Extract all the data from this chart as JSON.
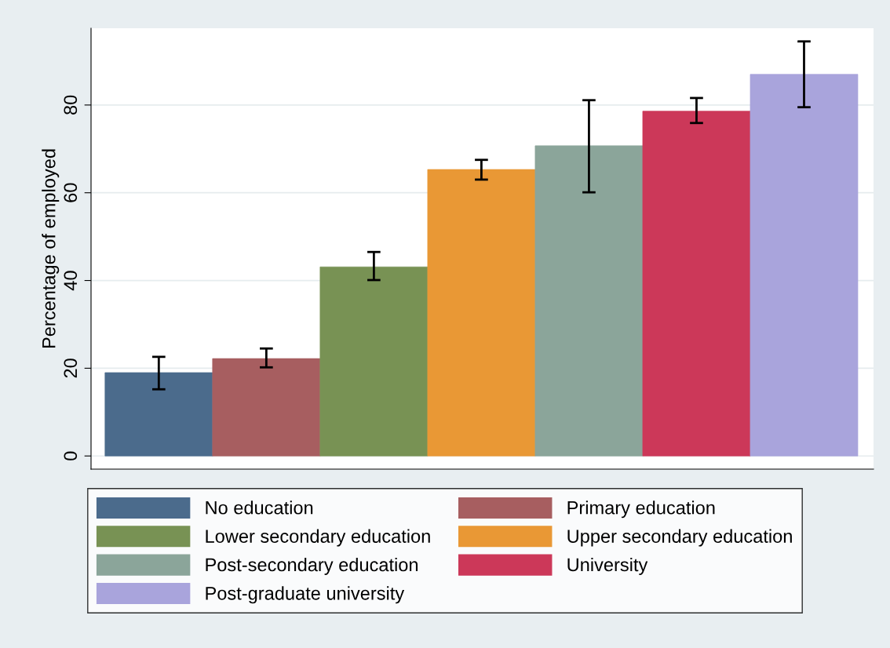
{
  "chart_data": {
    "type": "bar",
    "ylabel": "Percentage of employed",
    "categories": [
      null,
      null,
      null,
      null,
      null,
      null,
      null
    ],
    "series": [
      {
        "name": "No education",
        "color": "#4b6b8c",
        "values": [
          19.0,
          null,
          null,
          null,
          null,
          null,
          null
        ],
        "errors": [
          [
            15.2,
            22.6
          ],
          null,
          null,
          null,
          null,
          null,
          null
        ]
      },
      {
        "name": "Primary education",
        "color": "#a75e60",
        "values": [
          null,
          22.2,
          null,
          null,
          null,
          null,
          null
        ],
        "errors": [
          null,
          [
            20.2,
            24.5
          ],
          null,
          null,
          null,
          null,
          null
        ]
      },
      {
        "name": "Lower secondary education",
        "color": "#789254",
        "values": [
          null,
          null,
          43.1,
          null,
          null,
          null,
          null
        ],
        "errors": [
          null,
          null,
          [
            40.1,
            46.5
          ],
          null,
          null,
          null,
          null
        ]
      },
      {
        "name": "Upper secondary education",
        "color": "#e99835",
        "values": [
          null,
          null,
          null,
          65.3,
          null,
          null,
          null
        ],
        "errors": [
          null,
          null,
          null,
          [
            63.0,
            67.5
          ],
          null,
          null,
          null
        ]
      },
      {
        "name": "Post-secondary education",
        "color": "#8ba59a",
        "values": [
          null,
          null,
          null,
          null,
          70.7,
          null,
          null
        ],
        "errors": [
          null,
          null,
          null,
          null,
          [
            60.1,
            81.1
          ],
          null,
          null
        ]
      },
      {
        "name": "University",
        "color": "#cc3859",
        "values": [
          null,
          null,
          null,
          null,
          null,
          78.6,
          null
        ],
        "errors": [
          null,
          null,
          null,
          null,
          null,
          [
            75.9,
            81.6
          ],
          null
        ]
      },
      {
        "name": "Post-graduate university",
        "color": "#a9a4dc",
        "values": [
          null,
          null,
          null,
          null,
          null,
          null,
          87.0
        ],
        "errors": [
          null,
          null,
          null,
          null,
          null,
          null,
          [
            79.5,
            94.5
          ]
        ]
      }
    ],
    "ylim": [
      -3,
      97.5
    ],
    "yticks": [
      0,
      20,
      40,
      60,
      80
    ],
    "grid": "y",
    "legend": "bottom"
  }
}
